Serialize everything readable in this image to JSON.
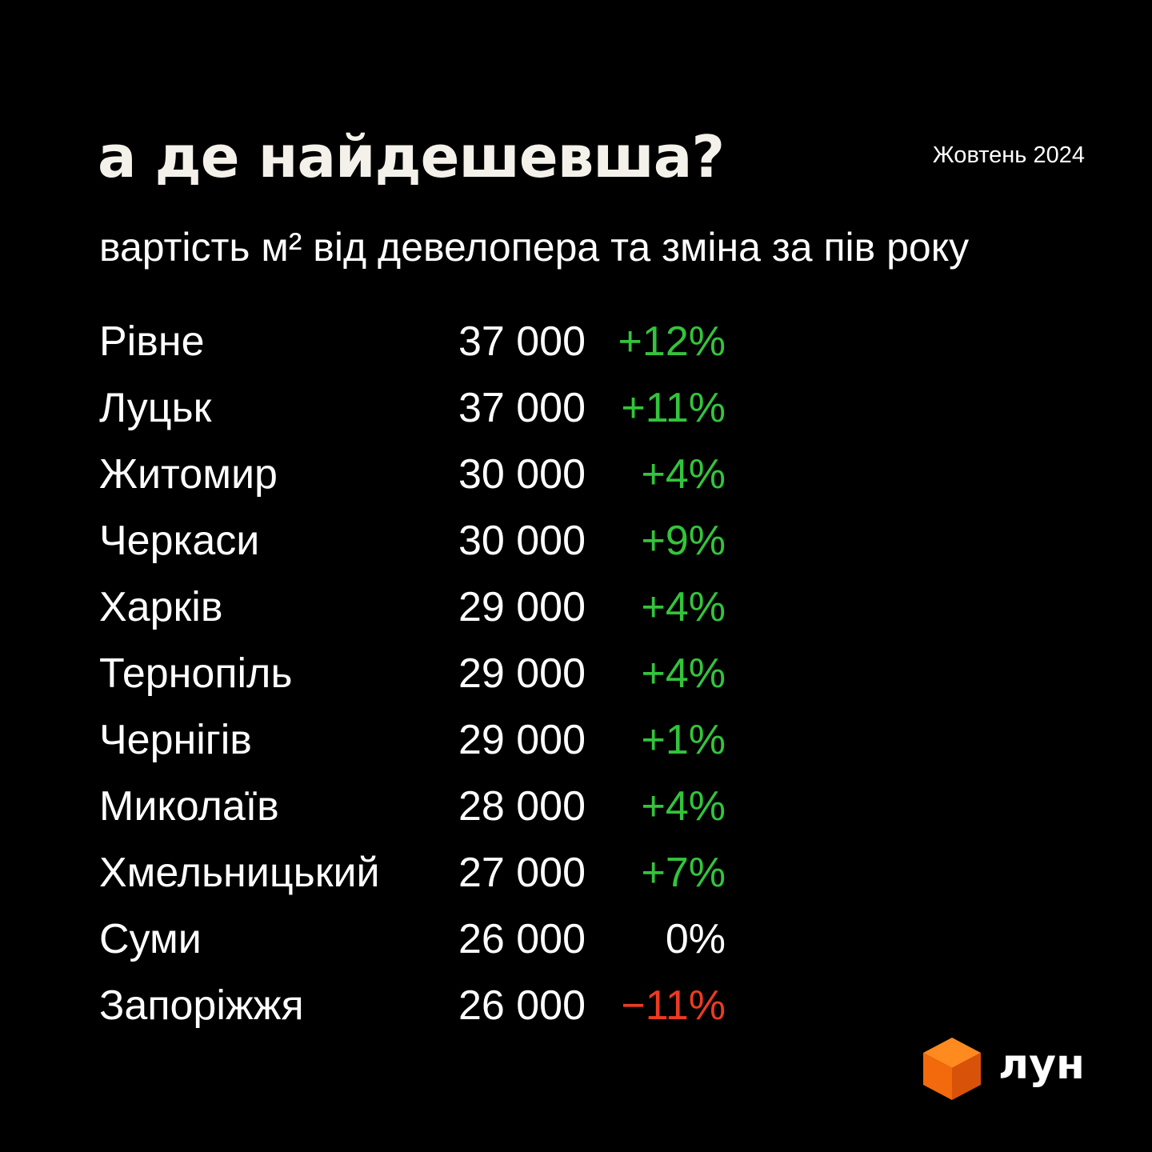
{
  "header": {
    "title": "а де найдешевша?",
    "subtitle": "вартість м² від девелопера та зміна за пів року",
    "date": "Жовтень 2024"
  },
  "colors": {
    "positive": "#33c43b",
    "negative": "#ee3a22",
    "neutral": "#ffffff"
  },
  "rows": [
    {
      "city": "Рівне",
      "price": "37 000",
      "change": "+12%"
    },
    {
      "city": "Луцьк",
      "price": "37 000",
      "change": "+11%"
    },
    {
      "city": "Житомир",
      "price": "30 000",
      "change": "+4%"
    },
    {
      "city": "Черкаси",
      "price": "30 000",
      "change": "+9%"
    },
    {
      "city": "Харків",
      "price": "29 000",
      "change": "+4%"
    },
    {
      "city": "Тернопіль",
      "price": "29 000",
      "change": "+4%"
    },
    {
      "city": "Чернігів",
      "price": "29 000",
      "change": "+1%"
    },
    {
      "city": "Миколаїв",
      "price": "28 000",
      "change": "+4%"
    },
    {
      "city": "Хмельницький",
      "price": "27 000",
      "change": "+7%"
    },
    {
      "city": "Суми",
      "price": "26 000",
      "change": "0%"
    },
    {
      "city": "Запоріжжя",
      "price": "26 000",
      "change": "−11%"
    }
  ],
  "chart_data": {
    "type": "table",
    "title": "а де найдешевша?",
    "subtitle": "вартість м² від девелопера та зміна за пів року",
    "columns": [
      "",
      "",
      ""
    ],
    "categories": [
      "Рівне",
      "Луцьк",
      "Житомир",
      "Черкаси",
      "Харків",
      "Тернопіль",
      "Чернігів",
      "Миколаїв",
      "Хмельницький",
      "Суми",
      "Запоріжжя"
    ],
    "series": [
      {
        "values": [
          37000,
          37000,
          30000,
          30000,
          29000,
          29000,
          29000,
          28000,
          27000,
          26000,
          26000
        ]
      },
      {
        "values": [
          12,
          11,
          4,
          9,
          4,
          4,
          1,
          4,
          7,
          0,
          -11
        ]
      }
    ]
  },
  "logo": {
    "text": "лун",
    "icon": "orange-cube-icon"
  }
}
